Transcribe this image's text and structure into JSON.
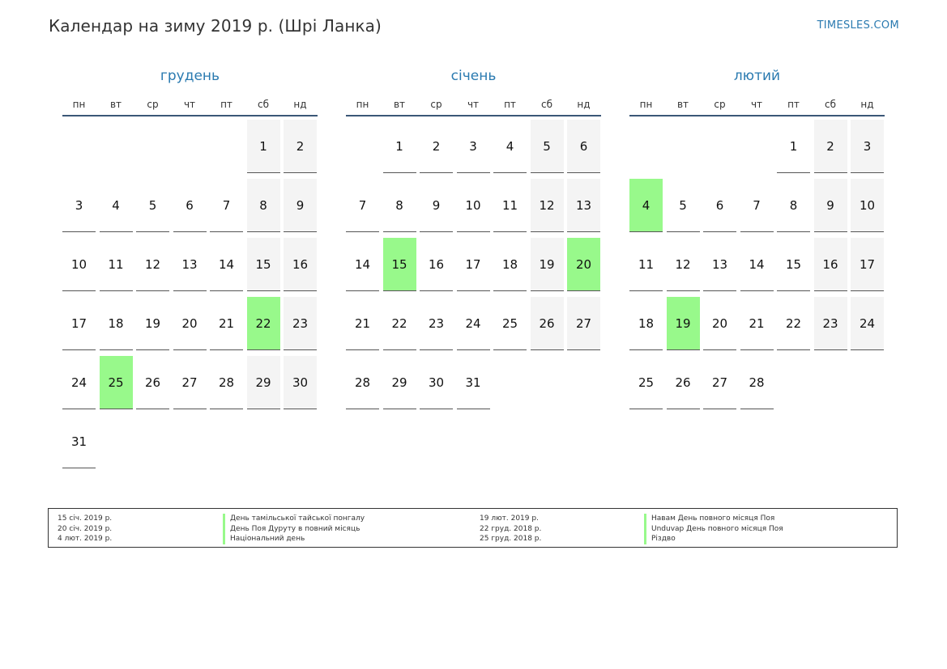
{
  "header": {
    "title": "Календар на зиму 2019 р. (Шрі Ланка)",
    "site": "TIMESLES.COM"
  },
  "colors": {
    "accent": "#2a7ab0",
    "holiday": "#98f98b",
    "weekend": "#f4f4f4",
    "header_rule": "#3b5777"
  },
  "weekdays": [
    "пн",
    "вт",
    "ср",
    "чт",
    "пт",
    "сб",
    "нд"
  ],
  "months": [
    {
      "name": "грудень",
      "start_offset": 5,
      "days_in_month": 31,
      "holidays": [
        22,
        25
      ]
    },
    {
      "name": "січень",
      "start_offset": 1,
      "days_in_month": 31,
      "holidays": [
        15,
        20
      ]
    },
    {
      "name": "лютий",
      "start_offset": 4,
      "days_in_month": 28,
      "holidays": [
        4,
        19
      ]
    }
  ],
  "legend": {
    "left": [
      {
        "date": "15 січ. 2019 р.",
        "name": "День тамільської тайської понгалу"
      },
      {
        "date": "20 січ. 2019 р.",
        "name": "День Поя Дуруту в повний місяць"
      },
      {
        "date": "4 лют. 2019 р.",
        "name": "Національний день"
      }
    ],
    "right": [
      {
        "date": "19 лют. 2019 р.",
        "name": "Навам День повного місяця Поя"
      },
      {
        "date": "22 груд. 2018 р.",
        "name": "Unduvap День повного місяця Поя"
      },
      {
        "date": "25 груд. 2018 р.",
        "name": "Різдво"
      }
    ]
  }
}
